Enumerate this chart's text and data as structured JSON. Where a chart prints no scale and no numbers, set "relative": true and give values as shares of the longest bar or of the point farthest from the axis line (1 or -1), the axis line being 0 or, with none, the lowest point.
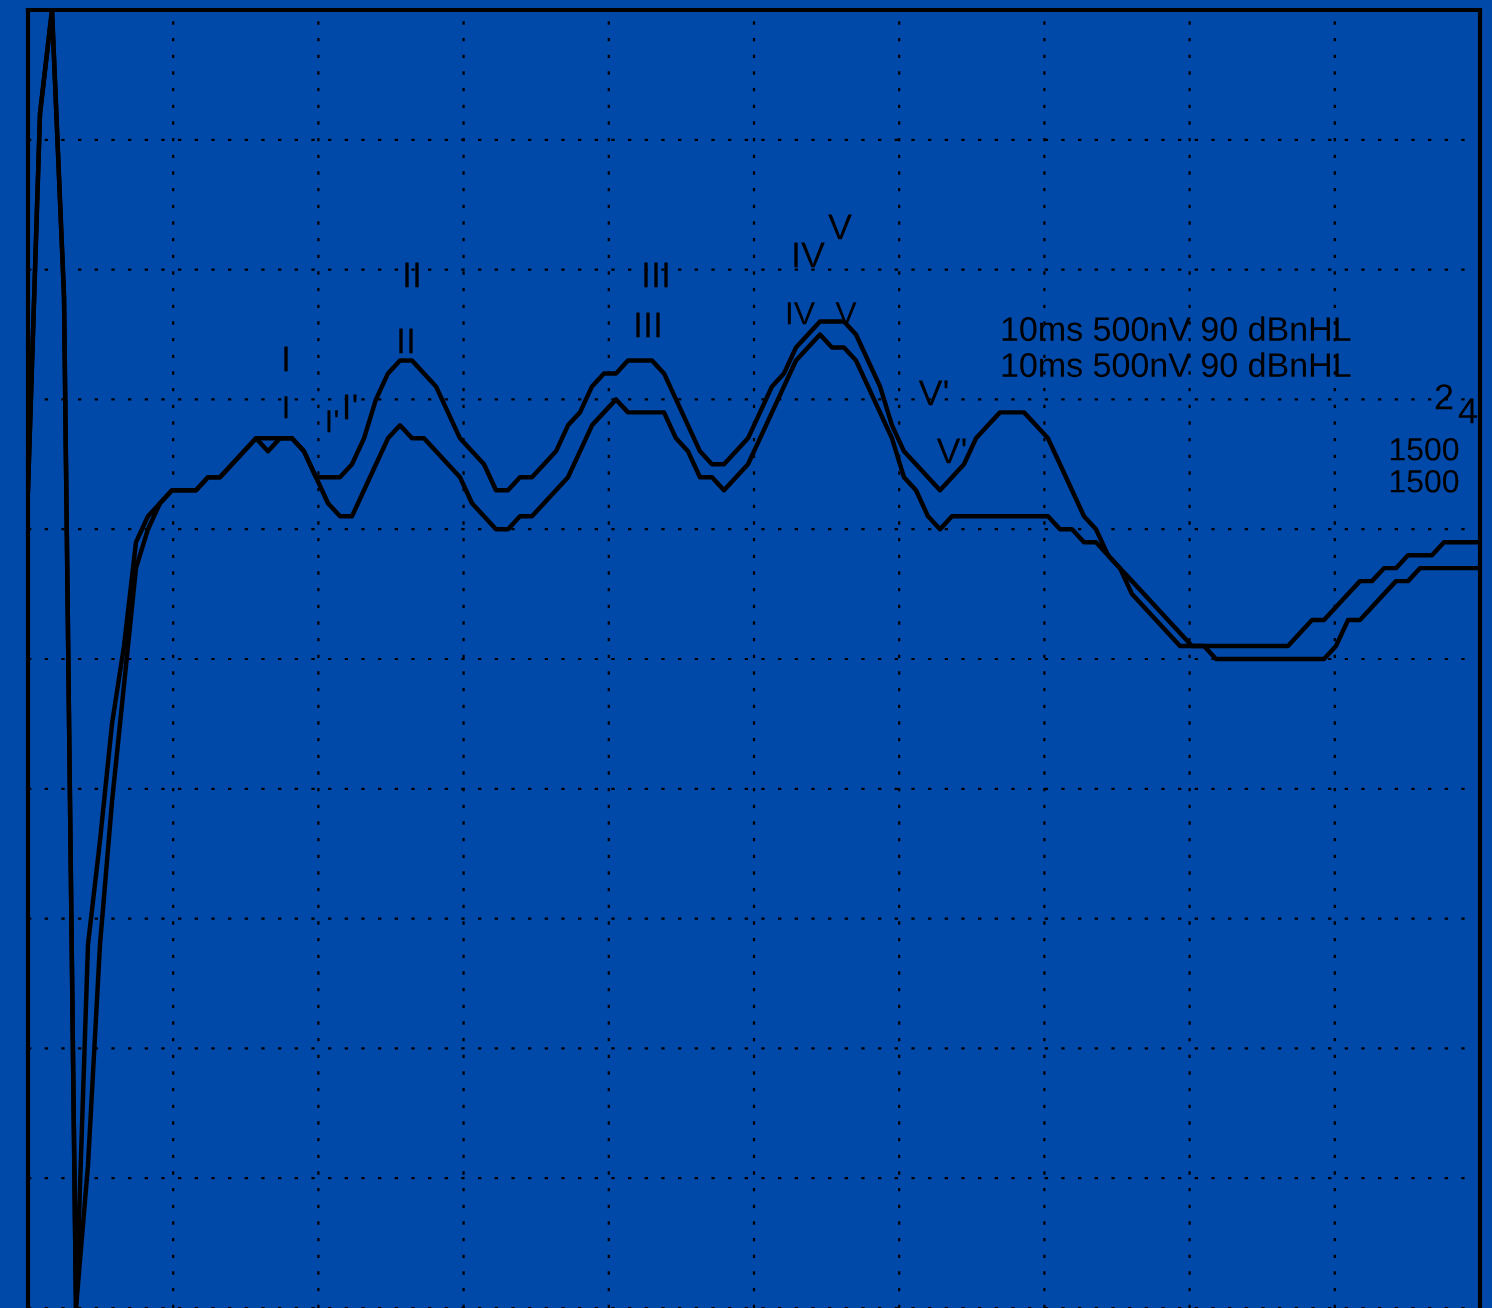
{
  "chart_data": {
    "type": "line",
    "relative": true,
    "grid": true,
    "marker": "none",
    "line_style": "solid",
    "categories": [
      null,
      null,
      null,
      null,
      null,
      null,
      null,
      null,
      null,
      null,
      null,
      null,
      null,
      null,
      null,
      null,
      null,
      null,
      null,
      null,
      null,
      null,
      null,
      null,
      null,
      null,
      null,
      null,
      null,
      null,
      null,
      null,
      null,
      null,
      null,
      null,
      null,
      null,
      null,
      null,
      null,
      null,
      null,
      null,
      null,
      null,
      null,
      null,
      null,
      null,
      null,
      null,
      null,
      null,
      null,
      null,
      null,
      null,
      null,
      null,
      null,
      null,
      null,
      null,
      null,
      null,
      null,
      null,
      null,
      null,
      null,
      null,
      null,
      null,
      null,
      null,
      null,
      null,
      null,
      null,
      null,
      null,
      null,
      null,
      null,
      null,
      null,
      null,
      null,
      null,
      null,
      null,
      null,
      null,
      null,
      null,
      null,
      null,
      null,
      null,
      null,
      null,
      null,
      null,
      null,
      null,
      null,
      null,
      null,
      null,
      null,
      null,
      null,
      null,
      null,
      null,
      null,
      null,
      null,
      null,
      null,
      null
    ],
    "series": [
      {
        "color": "#000000",
        "values": [
          0.63,
          0.92,
          1,
          0.78,
          0,
          0.28,
          0.36,
          0.45,
          0.51,
          0.59,
          0.61,
          0.62,
          0.63,
          0.63,
          0.63,
          0.64,
          0.64,
          0.65,
          0.66,
          0.67,
          0.67,
          0.67,
          0.67,
          0.66,
          0.64,
          0.64,
          0.64,
          0.65,
          0.67,
          0.7,
          0.72,
          0.73,
          0.73,
          0.72,
          0.71,
          0.69,
          0.67,
          0.66,
          0.65,
          0.63,
          0.63,
          0.64,
          0.64,
          0.65,
          0.66,
          0.68,
          0.69,
          0.71,
          0.72,
          0.72,
          0.73,
          0.73,
          0.73,
          0.72,
          0.7,
          0.68,
          0.66,
          0.65,
          0.65,
          0.66,
          0.67,
          0.69,
          0.71,
          0.72,
          0.74,
          0.75,
          0.76,
          0.76,
          0.76,
          0.75,
          0.73,
          0.71,
          0.68,
          0.66,
          0.65,
          0.64,
          0.63,
          0.64,
          0.65,
          0.67,
          0.68,
          0.69,
          0.69,
          0.69,
          0.68,
          0.67,
          0.65,
          0.63,
          0.61,
          0.6,
          0.58,
          0.57,
          0.55,
          0.54,
          0.53,
          0.52,
          0.51,
          0.51,
          0.51,
          0.51,
          0.51,
          0.51,
          0.51,
          0.51,
          0.51,
          0.51,
          0.52,
          0.53,
          0.53,
          0.54,
          0.55,
          0.56,
          0.56,
          0.57,
          0.57,
          0.58,
          0.58,
          0.58,
          0.59,
          0.59,
          0.59,
          0.59
        ]
      },
      {
        "color": "#000000",
        "values": [
          0.63,
          0.92,
          1,
          0.78,
          0,
          0.11,
          0.28,
          0.39,
          0.48,
          0.57,
          0.6,
          0.62,
          0.63,
          0.63,
          0.63,
          0.64,
          0.64,
          0.65,
          0.66,
          0.67,
          0.66,
          0.67,
          0.67,
          0.66,
          0.64,
          0.62,
          0.61,
          0.61,
          0.63,
          0.65,
          0.67,
          0.68,
          0.67,
          0.67,
          0.66,
          0.65,
          0.64,
          0.62,
          0.61,
          0.6,
          0.6,
          0.61,
          0.61,
          0.62,
          0.63,
          0.64,
          0.66,
          0.68,
          0.69,
          0.7,
          0.69,
          0.69,
          0.69,
          0.69,
          0.67,
          0.66,
          0.64,
          0.64,
          0.63,
          0.64,
          0.65,
          0.67,
          0.69,
          0.71,
          0.73,
          0.74,
          0.75,
          0.74,
          0.74,
          0.73,
          0.71,
          0.69,
          0.67,
          0.64,
          0.63,
          0.61,
          0.6,
          0.61,
          0.61,
          0.61,
          0.61,
          0.61,
          0.61,
          0.61,
          0.61,
          0.61,
          0.6,
          0.6,
          0.59,
          0.59,
          0.58,
          0.57,
          0.56,
          0.55,
          0.54,
          0.53,
          0.52,
          0.51,
          0.51,
          0.5,
          0.5,
          0.5,
          0.5,
          0.5,
          0.5,
          0.5,
          0.5,
          0.5,
          0.5,
          0.51,
          0.53,
          0.53,
          0.54,
          0.55,
          0.56,
          0.56,
          0.57,
          0.57,
          0.57,
          0.57,
          0.57,
          0.57
        ]
      }
    ],
    "annotations": [
      "I",
      "I'",
      "II",
      "III",
      "IV",
      "V",
      "V'",
      "I",
      "I'",
      "II",
      "III",
      "IV",
      "V",
      "V'",
      "10ms 500nV 90 dBnHL",
      "10ms 500nV 90 dBnHL",
      "2",
      "4",
      "1500",
      "1500"
    ]
  }
}
